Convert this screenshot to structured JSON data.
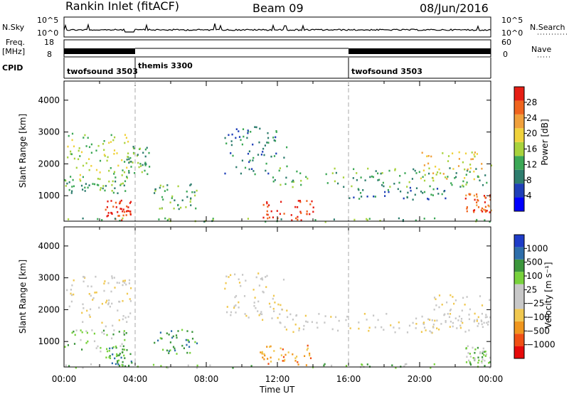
{
  "header": {
    "title": "Rankin Inlet (fitACF)",
    "beam": "Beam 09",
    "date": "08/Jun/2016"
  },
  "top_panels": {
    "nsky_label": "N.Sky",
    "nsky_ticks": [
      "10^5",
      "10^0"
    ],
    "nsearch_label": "N.Search",
    "nsearch_ticks": [
      "10^5",
      "10^0"
    ],
    "freq_label_1": "Freq.",
    "freq_label_2": "[MHz]",
    "freq_ticks": [
      "18",
      "8"
    ],
    "nave_label": "Nave",
    "nave_ticks": [
      "60",
      "0"
    ],
    "cpid_label": "CPID",
    "cpid_segments": [
      {
        "label": "twofsound 3503",
        "start_hour": 0
      },
      {
        "label": "themis 3300",
        "start_hour": 4
      },
      {
        "label": "twofsound 3503",
        "start_hour": 16
      }
    ]
  },
  "chart_data": [
    {
      "type": "heatmap",
      "name": "power",
      "ylabel": "Slant Range [km]",
      "yticks": [
        1000,
        2000,
        3000,
        4000
      ],
      "ylim": [
        200,
        4600
      ],
      "xlim": [
        0,
        24
      ],
      "colorbar_label": "Power [dB]",
      "colorbar_ticks": [
        "4",
        "8",
        "12",
        "16",
        "20",
        "24",
        "28"
      ],
      "colors": [
        "#0000ff",
        "#1f3fb8",
        "#2e7d6e",
        "#3ca856",
        "#a8d23c",
        "#f0d23c",
        "#f0a03c",
        "#f0641e",
        "#e61e14"
      ],
      "regions": [
        {
          "t0": 0.0,
          "t1": 3.8,
          "r0": 1500,
          "r1": 3100,
          "level": 4
        },
        {
          "t0": 0.0,
          "t1": 3.5,
          "r0": 1100,
          "r1": 1500,
          "level": 3
        },
        {
          "t0": 2.3,
          "t1": 3.8,
          "r0": 250,
          "r1": 900,
          "level": 8
        },
        {
          "t0": 3.5,
          "t1": 4.8,
          "r0": 1700,
          "r1": 2600,
          "level": 3
        },
        {
          "t0": 5.0,
          "t1": 7.5,
          "r0": 600,
          "r1": 1400,
          "level": 3
        },
        {
          "t0": 9.0,
          "t1": 12.5,
          "r0": 1700,
          "r1": 3200,
          "level": 2
        },
        {
          "t0": 11.0,
          "t1": 14.0,
          "r0": 250,
          "r1": 900,
          "level": 8
        },
        {
          "t0": 11.5,
          "t1": 24.0,
          "r0": 1300,
          "r1": 1900,
          "level": 3
        },
        {
          "t0": 16.0,
          "t1": 22.0,
          "r0": 900,
          "r1": 1300,
          "level": 2
        },
        {
          "t0": 20.0,
          "t1": 24.0,
          "r0": 1500,
          "r1": 2400,
          "level": 5
        },
        {
          "t0": 22.5,
          "t1": 24.0,
          "r0": 500,
          "r1": 1100,
          "level": 7
        },
        {
          "t0": 0.0,
          "t1": 24.0,
          "r0": 200,
          "r1": 320,
          "level": 3
        }
      ]
    },
    {
      "type": "heatmap",
      "name": "velocity",
      "ylabel": "Slant Range [km]",
      "yticks": [
        1000,
        2000,
        3000,
        4000
      ],
      "ylim": [
        200,
        4600
      ],
      "xlim": [
        0,
        24
      ],
      "xlabel": "Time UT",
      "xticks": [
        "00:00",
        "04:00",
        "08:00",
        "12:00",
        "16:00",
        "20:00",
        "00:00"
      ],
      "colorbar_label": "Velocity [m s⁻¹]",
      "colorbar_ticks": [
        "1000",
        "500",
        "100",
        "25",
        "−25",
        "−100",
        "−500",
        "−1000"
      ],
      "colors": [
        "#e60a0a",
        "#f05014",
        "#f0961e",
        "#f0c850",
        "#c8c8c8",
        "#c8c8c8",
        "#78d23c",
        "#3c963c",
        "#2e6eaa",
        "#1e3cc8"
      ],
      "regions": [
        {
          "t0": 0.0,
          "t1": 3.8,
          "r0": 1500,
          "r1": 3100,
          "level": 4
        },
        {
          "t0": 0.0,
          "t1": 3.5,
          "r0": 700,
          "r1": 1400,
          "level": 6
        },
        {
          "t0": 2.3,
          "t1": 3.8,
          "r0": 250,
          "r1": 900,
          "level": 7
        },
        {
          "t0": 5.0,
          "t1": 7.5,
          "r0": 600,
          "r1": 1400,
          "level": 7
        },
        {
          "t0": 9.0,
          "t1": 12.5,
          "r0": 1700,
          "r1": 3200,
          "level": 4
        },
        {
          "t0": 11.0,
          "t1": 14.0,
          "r0": 250,
          "r1": 900,
          "level": 2
        },
        {
          "t0": 11.5,
          "t1": 24.0,
          "r0": 1300,
          "r1": 1900,
          "level": 4
        },
        {
          "t0": 20.0,
          "t1": 24.0,
          "r0": 1500,
          "r1": 2500,
          "level": 4
        },
        {
          "t0": 22.5,
          "t1": 24.0,
          "r0": 300,
          "r1": 900,
          "level": 6
        },
        {
          "t0": 0.0,
          "t1": 24.0,
          "r0": 200,
          "r1": 320,
          "level": 6
        }
      ]
    }
  ]
}
